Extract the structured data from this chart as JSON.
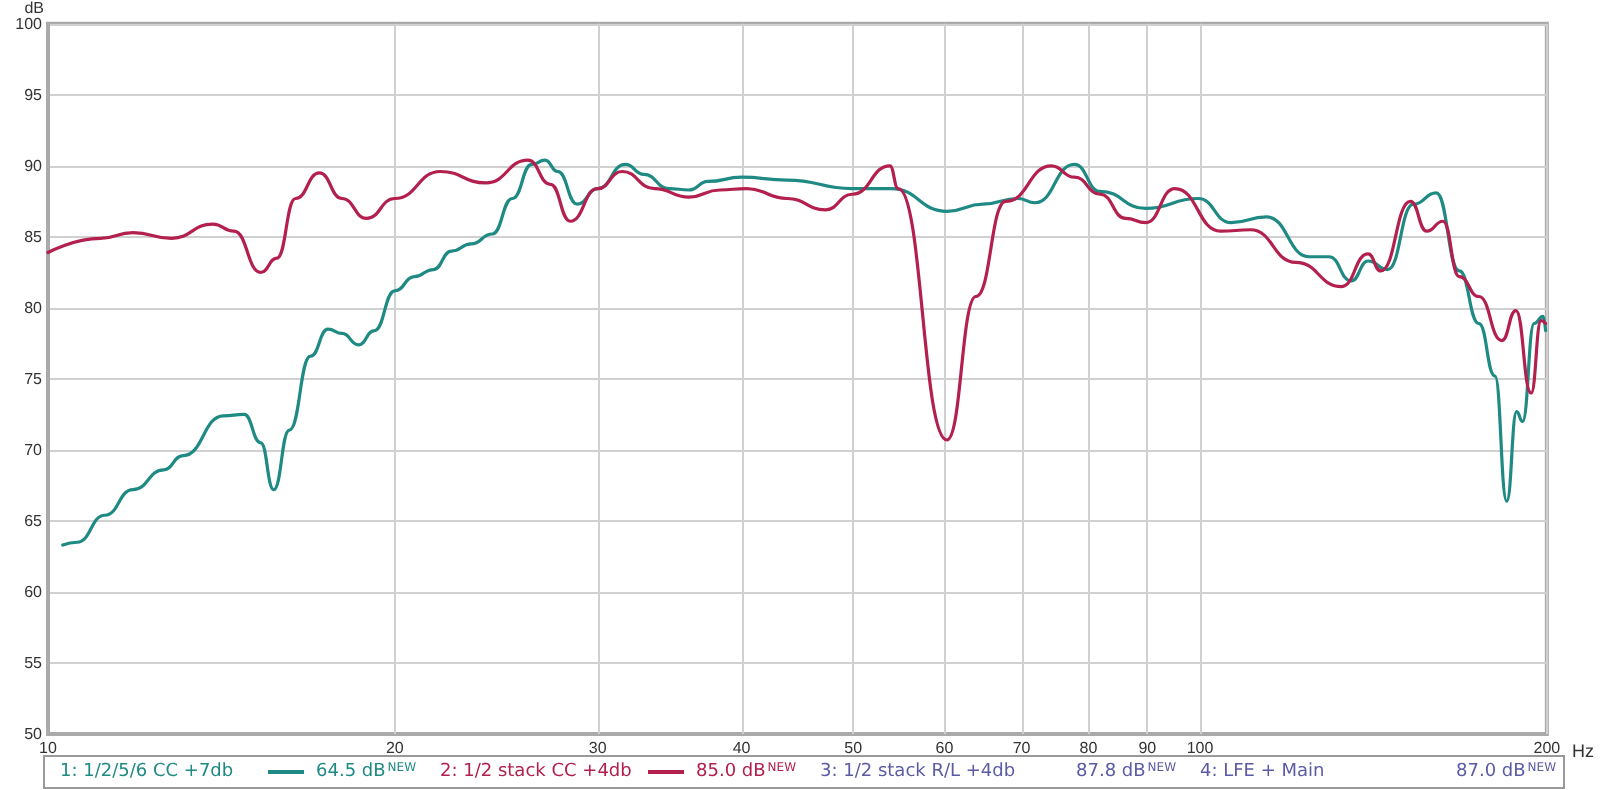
{
  "chart_data": {
    "type": "line",
    "xlabel": "Hz",
    "ylabel": "dB",
    "log": "x",
    "xlim": [
      10,
      200
    ],
    "xticks": [
      10,
      20,
      30,
      40,
      50,
      60,
      70,
      80,
      90,
      100,
      200
    ],
    "ylim": [
      50,
      100
    ],
    "yticks": [
      50,
      55,
      60,
      65,
      70,
      75,
      80,
      85,
      90,
      95,
      100
    ],
    "grid": true,
    "legend": "bottom",
    "marker": "none",
    "line_style": "solid",
    "series": [
      {
        "name": "1: 1/2/5/6 CC +7db",
        "color": "#1f8a83",
        "x": [
          10.3,
          10.6,
          11.2,
          11.85,
          12.6,
          13.1,
          14.2,
          14.8,
          15.3,
          15.7,
          16.2,
          16.9,
          17.5,
          18.0,
          18.6,
          19.2,
          20.0,
          20.8,
          21.6,
          22.4,
          23.3,
          24.3,
          25.3,
          26.3,
          27.0,
          27.7,
          28.8,
          30,
          31.7,
          32.9,
          34.6,
          36.0,
          37.4,
          40,
          43.8,
          49.9,
          53.9,
          60.3,
          64.8,
          69.5,
          71.9,
          77.8,
          81.9,
          89.7,
          99.6,
          106.4,
          114.2,
          124.4,
          129.4,
          135.3,
          139.9,
          145.5,
          153.2,
          160.3,
          167.9,
          174.6,
          180.3,
          184.6,
          188.3,
          190.5,
          195.0,
          198.5,
          199.5
        ],
        "values": [
          63.3,
          63.5,
          65.4,
          67.2,
          68.6,
          69.6,
          72.4,
          72.5,
          70.5,
          67.2,
          71.4,
          76.6,
          78.5,
          78.2,
          77.4,
          78.4,
          81.2,
          82.2,
          82.7,
          84.0,
          84.5,
          85.2,
          87.7,
          90.1,
          90.4,
          89.6,
          87.3,
          88.4,
          90.1,
          89.4,
          88.4,
          88.3,
          88.9,
          89.2,
          89.0,
          88.4,
          88.4,
          86.8,
          87.3,
          87.7,
          87.4,
          90.1,
          88.2,
          87.0,
          87.7,
          86.0,
          86.4,
          83.6,
          83.6,
          81.9,
          83.3,
          82.7,
          87.3,
          88.1,
          82.6,
          78.9,
          75.2,
          66.4,
          72.7,
          72.0,
          78.9,
          79.4,
          78.4
        ]
      },
      {
        "name": "2: 1/2 stack CC +4db",
        "color": "#b3204d",
        "x": [
          10,
          11.1,
          11.85,
          12.8,
          13.9,
          14.5,
          15.3,
          15.8,
          16.4,
          17.2,
          18.0,
          18.9,
          20.0,
          21.9,
          24.0,
          26.1,
          27.3,
          28.4,
          30,
          31.5,
          33.6,
          36.0,
          38.3,
          40.4,
          43.8,
          47.3,
          49.9,
          53.8,
          54.7,
          60.3,
          63.9,
          67.8,
          74.3,
          77.8,
          81.9,
          86.2,
          89.7,
          95.1,
          104.2,
          110.6,
          121.1,
          132.7,
          139.9,
          143.5,
          152.3,
          157.3,
          162.5,
          167.9,
          174.6,
          182.8,
          188.0,
          193.8,
          197.7,
          199.5
        ],
        "values": [
          83.9,
          84.9,
          85.3,
          84.9,
          85.9,
          85.4,
          82.5,
          83.5,
          87.7,
          89.5,
          87.7,
          86.3,
          87.7,
          89.6,
          88.8,
          90.4,
          88.7,
          86.1,
          88.4,
          89.6,
          88.4,
          87.8,
          88.3,
          88.4,
          87.7,
          86.9,
          88.0,
          90.0,
          88.4,
          70.7,
          80.8,
          87.5,
          90.0,
          89.2,
          88.0,
          86.3,
          86.0,
          88.4,
          85.4,
          85.5,
          83.2,
          81.5,
          83.8,
          82.6,
          87.5,
          85.4,
          86.1,
          82.2,
          80.8,
          77.7,
          79.8,
          74.0,
          79.1,
          78.9
        ]
      }
    ],
    "annotations": [
      "64.5 dB$^{NEW}$",
      "85.0 dB$^{NEW}$",
      "3: 1/2 stack R/L +4db",
      "87.8 dB$^{NEW}$",
      "4: LFE + Main",
      "87.0 dB$^{NEW}$"
    ]
  }
}
